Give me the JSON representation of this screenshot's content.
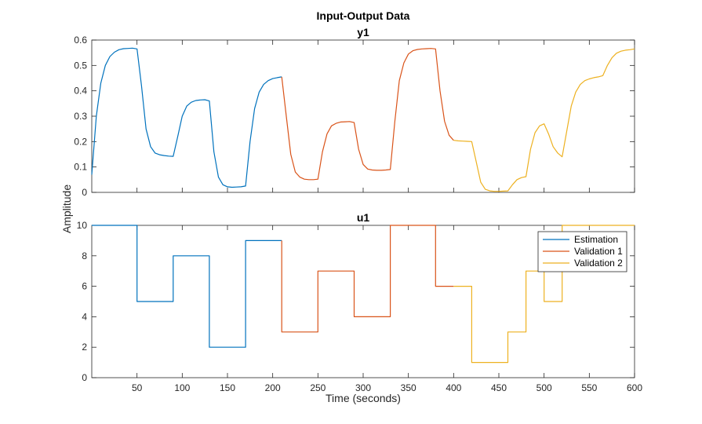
{
  "figure": {
    "title": "Input-Output Data",
    "xlabel": "Time (seconds)",
    "ylabel": "Amplitude"
  },
  "colors": {
    "estimation": "#0072BD",
    "validation1": "#D95319",
    "validation2": "#EDB120"
  },
  "chart_data": [
    {
      "type": "line",
      "title": "y1",
      "xlim": [
        0,
        600
      ],
      "ylim": [
        0,
        0.6
      ],
      "xticks": [
        50,
        100,
        150,
        200,
        250,
        300,
        350,
        400,
        450,
        500,
        550,
        600
      ],
      "yticks": [
        0,
        0.1,
        0.2,
        0.3,
        0.4,
        0.5,
        0.6
      ],
      "show_xtick_labels": false,
      "grid": false,
      "series": [
        {
          "name": "Estimation",
          "color": "#0072BD",
          "x": [
            0,
            5,
            10,
            15,
            20,
            25,
            30,
            35,
            40,
            45,
            50,
            55,
            60,
            65,
            70,
            75,
            80,
            85,
            90,
            95,
            100,
            105,
            110,
            115,
            120,
            125,
            130,
            135,
            140,
            145,
            150,
            155,
            160,
            165,
            170,
            175,
            180,
            185,
            190,
            195,
            200,
            205,
            210
          ],
          "y": [
            0.07,
            0.3,
            0.43,
            0.5,
            0.535,
            0.552,
            0.562,
            0.566,
            0.567,
            0.568,
            0.565,
            0.42,
            0.25,
            0.18,
            0.155,
            0.148,
            0.145,
            0.143,
            0.142,
            0.22,
            0.3,
            0.34,
            0.355,
            0.362,
            0.364,
            0.365,
            0.36,
            0.16,
            0.06,
            0.03,
            0.022,
            0.02,
            0.021,
            0.022,
            0.025,
            0.2,
            0.33,
            0.395,
            0.425,
            0.44,
            0.448,
            0.452,
            0.455
          ]
        },
        {
          "name": "Validation 1",
          "color": "#D95319",
          "x": [
            210,
            215,
            220,
            225,
            230,
            235,
            240,
            245,
            250,
            255,
            260,
            265,
            270,
            275,
            280,
            285,
            290,
            295,
            300,
            305,
            310,
            315,
            320,
            325,
            330,
            335,
            340,
            345,
            350,
            355,
            360,
            365,
            370,
            375,
            380,
            385,
            390,
            395,
            400
          ],
          "y": [
            0.455,
            0.3,
            0.15,
            0.08,
            0.06,
            0.052,
            0.05,
            0.05,
            0.052,
            0.16,
            0.23,
            0.262,
            0.272,
            0.277,
            0.278,
            0.279,
            0.275,
            0.17,
            0.11,
            0.092,
            0.088,
            0.087,
            0.087,
            0.088,
            0.09,
            0.28,
            0.44,
            0.51,
            0.545,
            0.558,
            0.563,
            0.565,
            0.566,
            0.567,
            0.565,
            0.4,
            0.28,
            0.225,
            0.205
          ]
        },
        {
          "name": "Validation 2",
          "color": "#EDB120",
          "x": [
            400,
            405,
            410,
            415,
            420,
            425,
            430,
            435,
            440,
            445,
            450,
            455,
            460,
            465,
            470,
            475,
            480,
            485,
            490,
            495,
            500,
            505,
            510,
            515,
            520,
            525,
            530,
            535,
            540,
            545,
            550,
            555,
            560,
            565,
            570,
            575,
            580,
            585,
            590,
            595,
            600
          ],
          "y": [
            0.205,
            0.203,
            0.202,
            0.201,
            0.2,
            0.12,
            0.04,
            0.012,
            0.006,
            0.004,
            0.004,
            0.005,
            0.006,
            0.03,
            0.05,
            0.058,
            0.062,
            0.17,
            0.235,
            0.262,
            0.27,
            0.23,
            0.18,
            0.155,
            0.14,
            0.24,
            0.34,
            0.395,
            0.425,
            0.44,
            0.447,
            0.452,
            0.455,
            0.46,
            0.5,
            0.53,
            0.548,
            0.556,
            0.56,
            0.562,
            0.565
          ]
        }
      ]
    },
    {
      "type": "line",
      "title": "u1",
      "xlim": [
        0,
        600
      ],
      "ylim": [
        0,
        10
      ],
      "xticks": [
        50,
        100,
        150,
        200,
        250,
        300,
        350,
        400,
        450,
        500,
        550,
        600
      ],
      "yticks": [
        0,
        2,
        4,
        6,
        8,
        10
      ],
      "show_xtick_labels": true,
      "grid": false,
      "legend": {
        "position": "top-right",
        "entries": [
          "Estimation",
          "Validation 1",
          "Validation 2"
        ]
      },
      "series": [
        {
          "name": "Estimation",
          "color": "#0072BD",
          "x": [
            0,
            50,
            50,
            90,
            90,
            130,
            130,
            170,
            170,
            210
          ],
          "y": [
            10,
            10,
            5,
            5,
            8,
            8,
            2,
            2,
            9,
            9
          ]
        },
        {
          "name": "Validation 1",
          "color": "#D95319",
          "x": [
            210,
            210,
            250,
            250,
            290,
            290,
            330,
            330,
            380,
            380,
            400
          ],
          "y": [
            9,
            3,
            3,
            7,
            7,
            4,
            4,
            10,
            10,
            6,
            6
          ]
        },
        {
          "name": "Validation 2",
          "color": "#EDB120",
          "x": [
            400,
            420,
            420,
            460,
            460,
            480,
            480,
            500,
            500,
            520,
            520,
            560,
            560,
            600
          ],
          "y": [
            6,
            6,
            1,
            1,
            3,
            3,
            7,
            7,
            5,
            5,
            10,
            10,
            10,
            10
          ]
        }
      ]
    }
  ]
}
